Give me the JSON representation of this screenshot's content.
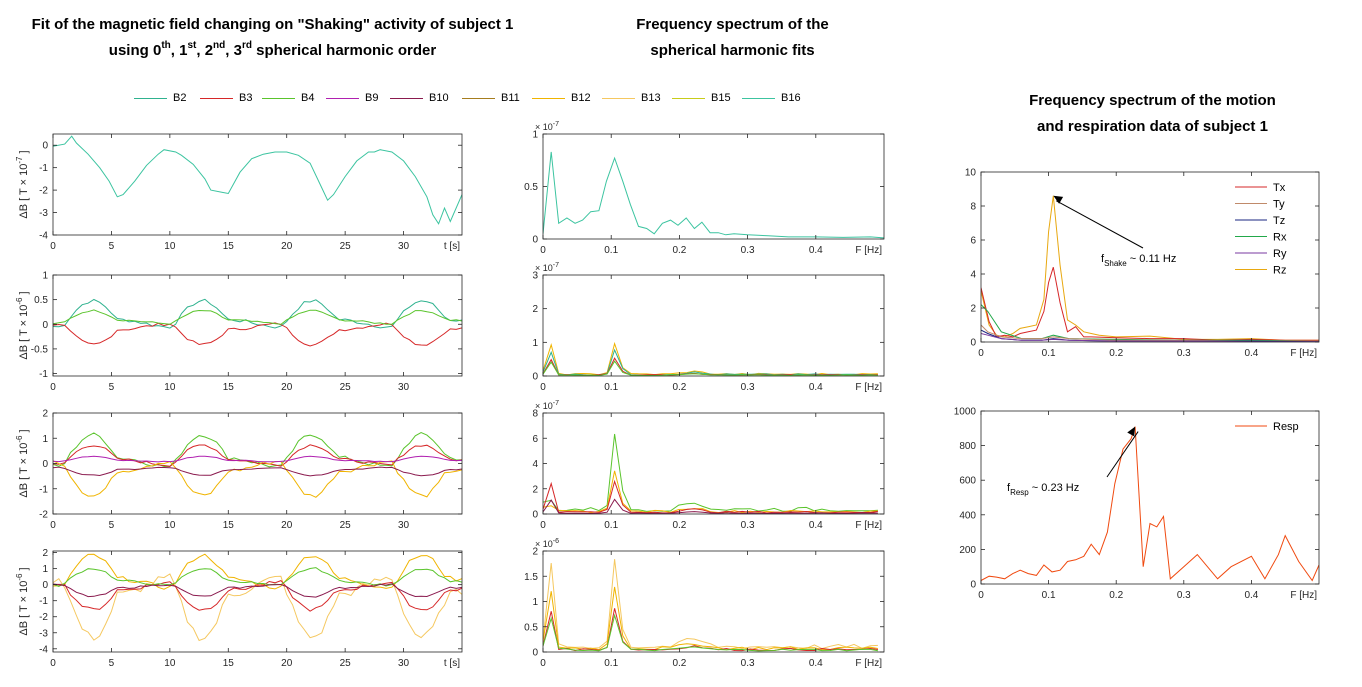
{
  "titles": {
    "left_line1": "Fit of the magnetic field changing on \"Shaking\" activity of subject 1",
    "left_line2_prefix": "using 0",
    "left_sup0": "th",
    "left_sep1": ", 1",
    "left_sup1": "st",
    "left_sep2": ", 2",
    "left_sup2": "nd",
    "left_sep3": ", 3",
    "left_sup3": "rd",
    "left_line2_suffix": " spherical harmonic order",
    "mid_line1": "Frequency spectrum of the",
    "mid_line2": "spherical harmonic fits",
    "right_line1": "Frequency spectrum of the motion",
    "right_line2": "and respiration data of subject 1"
  },
  "colors": {
    "B2": "#2fb28f",
    "B3": "#d62728",
    "B4": "#5ac42c",
    "B9": "#b020b0",
    "B10": "#8a1a4e",
    "B11": "#a67d1e",
    "B12": "#f0b400",
    "B13": "#f5c860",
    "B15": "#c8cc1a",
    "B16": "#3cc4a0",
    "Tx": "#d62728",
    "Ty": "#c08a6a",
    "Tz": "#1a2580",
    "Rx": "#22a84a",
    "Ry": "#7a3aa0",
    "Rz": "#e8a810",
    "Resp": "#f04a10"
  },
  "chart_data": [
    {
      "id": "field-order0",
      "type": "line",
      "xlabel": "t [s]",
      "ylabel": "ΔB [ T × 10",
      "ylabel_exp": "-7",
      "ylabel_end": " ]",
      "xlim": [
        0,
        35
      ],
      "ylim": [
        -4,
        0.5
      ],
      "xticks": [
        0,
        5,
        10,
        15,
        20,
        25,
        30
      ],
      "yticks": [
        -4,
        -3,
        -2,
        -1,
        0
      ],
      "series": [
        {
          "key": "B16",
          "x": [
            0,
            1,
            1.6,
            2,
            3,
            4,
            4.8,
            5.5,
            6,
            7,
            8,
            9,
            9.5,
            10.5,
            11,
            12,
            13,
            13.5,
            14.5,
            15,
            16,
            17,
            18,
            19,
            20,
            21,
            22,
            23,
            23.5,
            24,
            25,
            26,
            27,
            27.5,
            28,
            29,
            30,
            31,
            32,
            32.5,
            33,
            33.5,
            34,
            35
          ],
          "y": [
            -0.05,
            0.05,
            0.4,
            0.1,
            -0.4,
            -1.0,
            -1.6,
            -2.3,
            -2.2,
            -1.6,
            -0.9,
            -0.4,
            -0.2,
            -0.3,
            -0.45,
            -0.85,
            -1.5,
            -2.0,
            -2.1,
            -2.15,
            -1.2,
            -0.6,
            -0.4,
            -0.3,
            -0.3,
            -0.45,
            -0.8,
            -1.9,
            -2.45,
            -2.2,
            -1.4,
            -0.7,
            -0.3,
            -0.3,
            -0.2,
            -0.3,
            -0.7,
            -1.4,
            -2.3,
            -3.1,
            -3.5,
            -2.8,
            -3.4,
            -2.2
          ]
        }
      ]
    },
    {
      "id": "field-order1",
      "type": "line",
      "xlabel": "",
      "ylabel": "ΔB [ T × 10",
      "ylabel_exp": "-6",
      "ylabel_end": " ]",
      "xlim": [
        0,
        35
      ],
      "ylim": [
        -1.05,
        1
      ],
      "xticks": [
        0,
        5,
        10,
        15,
        20,
        25,
        30
      ],
      "yticks": [
        -1,
        -0.5,
        0,
        0.5,
        1
      ],
      "series": [
        {
          "key": "B2",
          "amp": 0.5,
          "off": 0.02
        },
        {
          "key": "B3",
          "amp": -0.4,
          "off": -0.05
        },
        {
          "key": "B4",
          "amp": 0.25,
          "off": 0.05
        }
      ]
    },
    {
      "id": "field-order2",
      "type": "line",
      "xlabel": "",
      "ylabel": "ΔB [ T × 10",
      "ylabel_exp": "-6",
      "ylabel_end": " ]",
      "xlim": [
        0,
        35
      ],
      "ylim": [
        -2,
        2
      ],
      "xticks": [
        0,
        5,
        10,
        15,
        20,
        25,
        30
      ],
      "yticks": [
        -2,
        -1,
        0,
        1,
        2
      ],
      "series": [
        {
          "key": "B4",
          "amp": 1.2,
          "off": 0.05
        },
        {
          "key": "B3",
          "amp": 0.75,
          "off": 0.05
        },
        {
          "key": "B12",
          "amp": -1.3,
          "off": -0.1
        },
        {
          "key": "B9",
          "amp": 0.2,
          "off": 0.1
        },
        {
          "key": "B10",
          "amp": -0.3,
          "off": -0.2
        }
      ]
    },
    {
      "id": "field-order3",
      "type": "line",
      "xlabel": "t [s]",
      "ylabel": "ΔB [ T × 10",
      "ylabel_exp": "-6",
      "ylabel_end": " ]",
      "xlim": [
        0,
        35
      ],
      "ylim": [
        -4.2,
        2.1
      ],
      "xticks": [
        0,
        5,
        10,
        15,
        20,
        25,
        30
      ],
      "yticks": [
        -4,
        -3,
        -2,
        -1,
        0,
        1,
        2
      ],
      "series": [
        {
          "key": "B12",
          "amp": 1.9,
          "off": 0.1
        },
        {
          "key": "B13",
          "amp": -3.5,
          "off": -0.1
        },
        {
          "key": "B3",
          "amp": -1.6,
          "off": -0.1
        },
        {
          "key": "B4",
          "amp": 1.0,
          "off": 0.1
        },
        {
          "key": "B10",
          "amp": -0.7,
          "off": -0.1
        }
      ]
    },
    {
      "id": "spec-order0",
      "type": "line",
      "xlabel": "F [Hz]",
      "yexp": "× 10",
      "yexp_pow": "-7",
      "xlim": [
        0,
        0.5
      ],
      "ylim": [
        0,
        1
      ],
      "xticks": [
        0,
        0.1,
        0.2,
        0.3,
        0.4
      ],
      "yticks": [
        0,
        0.5,
        1
      ],
      "series": [
        {
          "key": "B16",
          "x": [
            0,
            0.012,
            0.023,
            0.035,
            0.047,
            0.058,
            0.07,
            0.082,
            0.093,
            0.105,
            0.117,
            0.128,
            0.14,
            0.152,
            0.163,
            0.175,
            0.187,
            0.198,
            0.21,
            0.222,
            0.233,
            0.245,
            0.257,
            0.268,
            0.28,
            0.3,
            0.33,
            0.36,
            0.4,
            0.44,
            0.48,
            0.5
          ],
          "y": [
            0.05,
            0.83,
            0.15,
            0.2,
            0.15,
            0.18,
            0.26,
            0.27,
            0.55,
            0.77,
            0.55,
            0.33,
            0.12,
            0.1,
            0.05,
            0.15,
            0.18,
            0.13,
            0.2,
            0.1,
            0.16,
            0.06,
            0.06,
            0.04,
            0.05,
            0.04,
            0.03,
            0.02,
            0.02,
            0.015,
            0.02,
            0.01
          ]
        }
      ]
    },
    {
      "id": "spec-order1",
      "type": "line",
      "xlabel": "F [Hz]",
      "yexp": "× 10",
      "yexp_pow": "-7",
      "xlim": [
        0,
        0.5
      ],
      "ylim": [
        0,
        3
      ],
      "xticks": [
        0,
        0.1,
        0.2,
        0.3,
        0.4
      ],
      "yticks": [
        0,
        1,
        2,
        3
      ],
      "series": [
        {
          "key": "B12",
          "scale": 1.0
        },
        {
          "key": "B2",
          "scale": 0.8
        },
        {
          "key": "B3",
          "scale": 0.55
        },
        {
          "key": "B4",
          "scale": 0.45
        }
      ]
    },
    {
      "id": "spec-order2",
      "type": "line",
      "xlabel": "F [Hz]",
      "yexp": "× 10",
      "yexp_pow": "-7",
      "xlim": [
        0,
        0.5
      ],
      "ylim": [
        0,
        8
      ],
      "xticks": [
        0,
        0.1,
        0.2,
        0.3,
        0.4
      ],
      "yticks": [
        0,
        2,
        4,
        6,
        8
      ],
      "series": [
        {
          "key": "B4",
          "scale": 6.7
        },
        {
          "key": "B12",
          "scale": 3.6
        },
        {
          "key": "B3",
          "scale": 2.7
        },
        {
          "key": "B10",
          "scale": 1.2
        }
      ]
    },
    {
      "id": "spec-order3",
      "type": "line",
      "xlabel": "F [Hz]",
      "yexp": "× 10",
      "yexp_pow": "-6",
      "xlim": [
        0,
        0.5
      ],
      "ylim": [
        0,
        2
      ],
      "xticks": [
        0,
        0.1,
        0.2,
        0.3,
        0.4
      ],
      "yticks": [
        0,
        0.5,
        1,
        1.5,
        2
      ],
      "series": [
        {
          "key": "B13",
          "scale": 1.9
        },
        {
          "key": "B12",
          "scale": 1.35
        },
        {
          "key": "B3",
          "scale": 0.9
        },
        {
          "key": "B4",
          "scale": 0.75
        }
      ]
    },
    {
      "id": "spec-motion",
      "type": "line",
      "xlabel": "F [Hz]",
      "xlim": [
        0,
        0.5
      ],
      "ylim": [
        0,
        10
      ],
      "xticks": [
        0,
        0.1,
        0.2,
        0.3,
        0.4
      ],
      "yticks": [
        0,
        2,
        4,
        6,
        8,
        10
      ],
      "legend": [
        "Tx",
        "Ty",
        "Tz",
        "Rx",
        "Ry",
        "Rz"
      ],
      "annotation": {
        "prefix": "f",
        "sub": "Shake",
        "suffix": " ~ 0.11 Hz",
        "arrow_to": [
          0.107,
          8.6
        ]
      },
      "series": [
        {
          "key": "Rz",
          "x": [
            0,
            0.012,
            0.023,
            0.035,
            0.047,
            0.058,
            0.07,
            0.082,
            0.093,
            0.1,
            0.107,
            0.117,
            0.128,
            0.14,
            0.152,
            0.163,
            0.175,
            0.2,
            0.25,
            0.3,
            0.35,
            0.4,
            0.45,
            0.5
          ],
          "y": [
            3.0,
            1.0,
            0.4,
            0.3,
            0.5,
            0.8,
            0.9,
            1.0,
            2.5,
            6.5,
            8.6,
            4.5,
            1.3,
            1.0,
            0.6,
            0.5,
            0.4,
            0.3,
            0.35,
            0.15,
            0.15,
            0.2,
            0.1,
            0.1
          ]
        },
        {
          "key": "Tx",
          "x": [
            0,
            0.012,
            0.023,
            0.035,
            0.047,
            0.058,
            0.07,
            0.082,
            0.093,
            0.1,
            0.107,
            0.117,
            0.128,
            0.14,
            0.152,
            0.163,
            0.2,
            0.25,
            0.3,
            0.35,
            0.4,
            0.45,
            0.5
          ],
          "y": [
            3.2,
            1.2,
            0.3,
            0.4,
            0.3,
            0.5,
            0.6,
            0.7,
            1.8,
            3.5,
            4.4,
            2.3,
            0.6,
            0.9,
            0.3,
            0.3,
            0.25,
            0.2,
            0.2,
            0.1,
            0.15,
            0.1,
            0.1
          ]
        },
        {
          "key": "Rx",
          "x": [
            0,
            0.01,
            0.03,
            0.06,
            0.09,
            0.107,
            0.13,
            0.2,
            0.3,
            0.4,
            0.5
          ],
          "y": [
            2.2,
            1.8,
            0.6,
            0.2,
            0.2,
            0.4,
            0.2,
            0.15,
            0.1,
            0.1,
            0.05
          ]
        },
        {
          "key": "Ty",
          "x": [
            0,
            0.01,
            0.03,
            0.06,
            0.09,
            0.107,
            0.13,
            0.2,
            0.3,
            0.4,
            0.5
          ],
          "y": [
            1.0,
            0.6,
            0.3,
            0.2,
            0.2,
            0.3,
            0.2,
            0.1,
            0.1,
            0.05,
            0.05
          ]
        },
        {
          "key": "Tz",
          "x": [
            0,
            0.01,
            0.03,
            0.06,
            0.09,
            0.107,
            0.13,
            0.2,
            0.3,
            0.4,
            0.5
          ],
          "y": [
            0.7,
            0.5,
            0.2,
            0.1,
            0.1,
            0.2,
            0.1,
            0.05,
            0.05,
            0.05,
            0.02
          ]
        },
        {
          "key": "Ry",
          "x": [
            0,
            0.01,
            0.03,
            0.06,
            0.09,
            0.107,
            0.13,
            0.2,
            0.3,
            0.4,
            0.5
          ],
          "y": [
            0.5,
            0.4,
            0.2,
            0.1,
            0.1,
            0.15,
            0.1,
            0.05,
            0.05,
            0.02,
            0.02
          ]
        }
      ]
    },
    {
      "id": "spec-resp",
      "type": "line",
      "xlabel": "F [Hz]",
      "xlim": [
        0,
        0.5
      ],
      "ylim": [
        0,
        1000
      ],
      "xticks": [
        0,
        0.1,
        0.2,
        0.3,
        0.4
      ],
      "yticks": [
        0,
        200,
        400,
        600,
        800,
        1000
      ],
      "legend": [
        "Resp"
      ],
      "annotation": {
        "prefix": "f",
        "sub": "Resp",
        "suffix": " ~ 0.23 Hz",
        "arrow_to": [
          0.228,
          910
        ]
      },
      "series": [
        {
          "key": "Resp",
          "x": [
            0,
            0.012,
            0.023,
            0.035,
            0.047,
            0.058,
            0.07,
            0.082,
            0.093,
            0.105,
            0.117,
            0.128,
            0.14,
            0.152,
            0.163,
            0.175,
            0.187,
            0.198,
            0.21,
            0.222,
            0.228,
            0.24,
            0.25,
            0.26,
            0.27,
            0.28,
            0.3,
            0.32,
            0.35,
            0.37,
            0.4,
            0.42,
            0.44,
            0.45,
            0.47,
            0.49,
            0.5
          ],
          "y": [
            20,
            45,
            40,
            30,
            60,
            80,
            60,
            50,
            110,
            70,
            80,
            130,
            140,
            160,
            230,
            170,
            300,
            580,
            780,
            840,
            910,
            100,
            350,
            330,
            390,
            30,
            100,
            170,
            30,
            100,
            160,
            30,
            170,
            280,
            130,
            20,
            110
          ]
        }
      ]
    }
  ]
}
